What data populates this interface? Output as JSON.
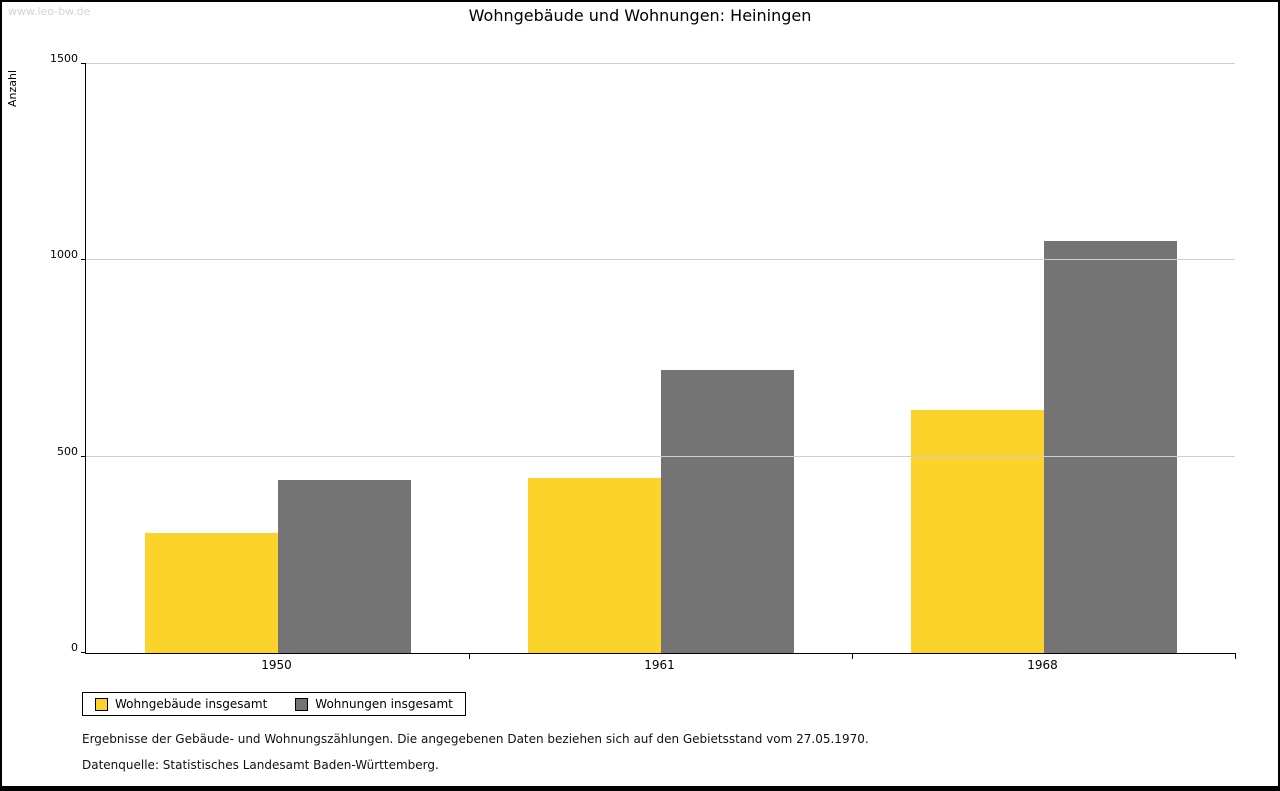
{
  "watermark": "www.leo-bw.de",
  "title": "Wohngebäude und Wohnungen: Heiningen",
  "chart_data": {
    "type": "bar",
    "title": "Wohngebäude und Wohnungen: Heiningen",
    "categories": [
      "1950",
      "1961",
      "1968"
    ],
    "series": [
      {
        "name": "Wohngebäude insgesamt",
        "color": "#FBD32B",
        "values": [
          305,
          445,
          620
        ]
      },
      {
        "name": "Wohnungen insgesamt",
        "color": "#747474",
        "values": [
          440,
          720,
          1050
        ]
      }
    ],
    "ylabel": "Anzahl",
    "ylim": [
      0,
      1500
    ],
    "yticks": [
      0,
      500,
      1000,
      1500
    ],
    "grid": true,
    "legend_position": "bottom-left"
  },
  "footnotes": [
    "Ergebnisse der Gebäude- und Wohnungszählungen. Die angegebenen Daten beziehen sich auf den Gebietsstand vom 27.05.1970.",
    "Datenquelle: Statistisches Landesamt Baden-Württemberg."
  ]
}
